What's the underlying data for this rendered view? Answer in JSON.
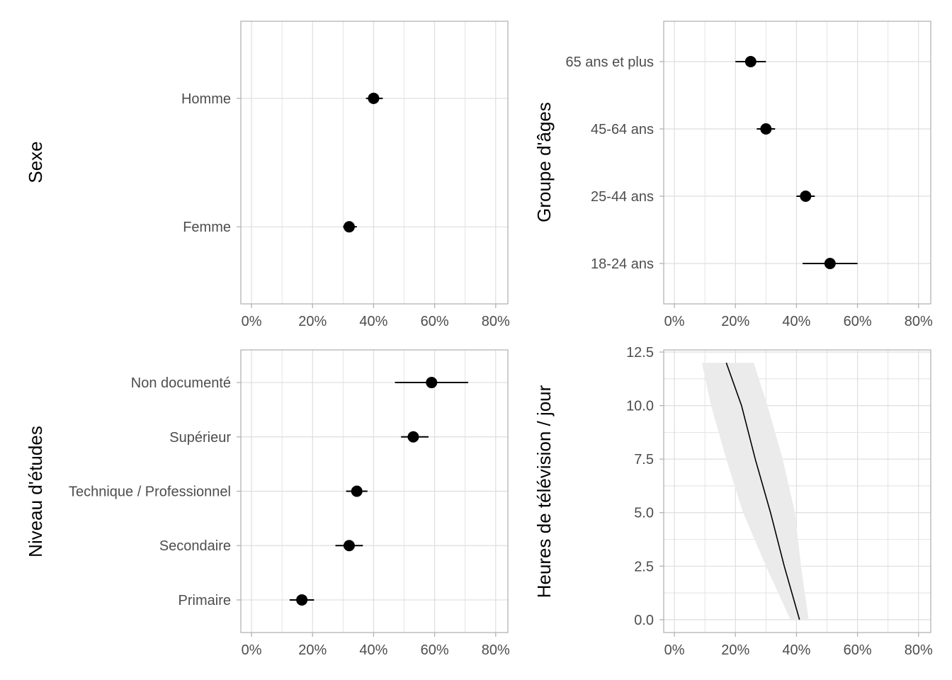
{
  "chart_data": [
    {
      "id": "sexe",
      "type": "scatter",
      "orientation": "horizontal",
      "ylabel": "Sexe",
      "xlabel": "",
      "xlim": [
        -0.035,
        0.84
      ],
      "x_ticks": [
        0,
        0.2,
        0.4,
        0.6,
        0.8
      ],
      "x_tick_labels": [
        "0%",
        "20%",
        "40%",
        "60%",
        "80%"
      ],
      "categories": [
        "Femme",
        "Homme"
      ],
      "points": [
        {
          "category": "Femme",
          "estimate": 0.32,
          "low": 0.3,
          "high": 0.345
        },
        {
          "category": "Homme",
          "estimate": 0.4,
          "low": 0.375,
          "high": 0.43
        }
      ],
      "grid": true
    },
    {
      "id": "age",
      "type": "scatter",
      "orientation": "horizontal",
      "ylabel": "Groupe d'âges",
      "xlabel": "",
      "xlim": [
        -0.035,
        0.84
      ],
      "x_ticks": [
        0,
        0.2,
        0.4,
        0.6,
        0.8
      ],
      "x_tick_labels": [
        "0%",
        "20%",
        "40%",
        "60%",
        "80%"
      ],
      "categories": [
        "18-24 ans",
        "25-44 ans",
        "45-64 ans",
        "65 ans et plus"
      ],
      "points": [
        {
          "category": "18-24 ans",
          "estimate": 0.51,
          "low": 0.42,
          "high": 0.6
        },
        {
          "category": "25-44 ans",
          "estimate": 0.43,
          "low": 0.4,
          "high": 0.46
        },
        {
          "category": "45-64 ans",
          "estimate": 0.3,
          "low": 0.27,
          "high": 0.33
        },
        {
          "category": "65 ans et plus",
          "estimate": 0.25,
          "low": 0.2,
          "high": 0.3
        }
      ],
      "grid": true
    },
    {
      "id": "etudes",
      "type": "scatter",
      "orientation": "horizontal",
      "ylabel": "Niveau d'études",
      "xlabel": "",
      "xlim": [
        -0.035,
        0.84
      ],
      "x_ticks": [
        0,
        0.2,
        0.4,
        0.6,
        0.8
      ],
      "x_tick_labels": [
        "0%",
        "20%",
        "40%",
        "60%",
        "80%"
      ],
      "categories": [
        "Primaire",
        "Secondaire",
        "Technique / Professionnel",
        "Supérieur",
        "Non documenté"
      ],
      "points": [
        {
          "category": "Primaire",
          "estimate": 0.165,
          "low": 0.125,
          "high": 0.205
        },
        {
          "category": "Secondaire",
          "estimate": 0.32,
          "low": 0.275,
          "high": 0.365
        },
        {
          "category": "Technique / Professionnel",
          "estimate": 0.345,
          "low": 0.31,
          "high": 0.38
        },
        {
          "category": "Supérieur",
          "estimate": 0.53,
          "low": 0.49,
          "high": 0.58
        },
        {
          "category": "Non documenté",
          "estimate": 0.59,
          "low": 0.47,
          "high": 0.71
        }
      ],
      "grid": true
    },
    {
      "id": "tv",
      "type": "line",
      "ylabel": "Heures de télévision / jour",
      "xlabel": "",
      "xlim": [
        -0.035,
        0.84
      ],
      "ylim": [
        -0.6,
        12.6
      ],
      "x_ticks": [
        0,
        0.2,
        0.4,
        0.6,
        0.8
      ],
      "x_tick_labels": [
        "0%",
        "20%",
        "40%",
        "60%",
        "80%"
      ],
      "y_ticks": [
        0,
        2.5,
        5,
        7.5,
        10,
        12.5
      ],
      "y_tick_labels": [
        "0.0",
        "2.5",
        "5.0",
        "7.5",
        "10.0",
        "12.5"
      ],
      "line": [
        {
          "hours": 0,
          "estimate": 0.41
        },
        {
          "hours": 2.5,
          "estimate": 0.36
        },
        {
          "hours": 5,
          "estimate": 0.315
        },
        {
          "hours": 7.5,
          "estimate": 0.265
        },
        {
          "hours": 10,
          "estimate": 0.22
        },
        {
          "hours": 12,
          "estimate": 0.17
        }
      ],
      "band": [
        {
          "hours": 0,
          "low": 0.38,
          "high": 0.44
        },
        {
          "hours": 2.5,
          "low": 0.3,
          "high": 0.415
        },
        {
          "hours": 5,
          "low": 0.225,
          "high": 0.395
        },
        {
          "hours": 7.5,
          "low": 0.17,
          "high": 0.355
        },
        {
          "hours": 10,
          "low": 0.12,
          "high": 0.305
        },
        {
          "hours": 12,
          "low": 0.09,
          "high": 0.26
        }
      ],
      "grid": true
    }
  ],
  "colors": {
    "point": "#000000",
    "line": "#000000",
    "band": "#ebebeb",
    "grid": "#dedede",
    "panel_border": "#b3b3b3",
    "tick_text": "#4d4d4d",
    "title_text": "#000000"
  }
}
